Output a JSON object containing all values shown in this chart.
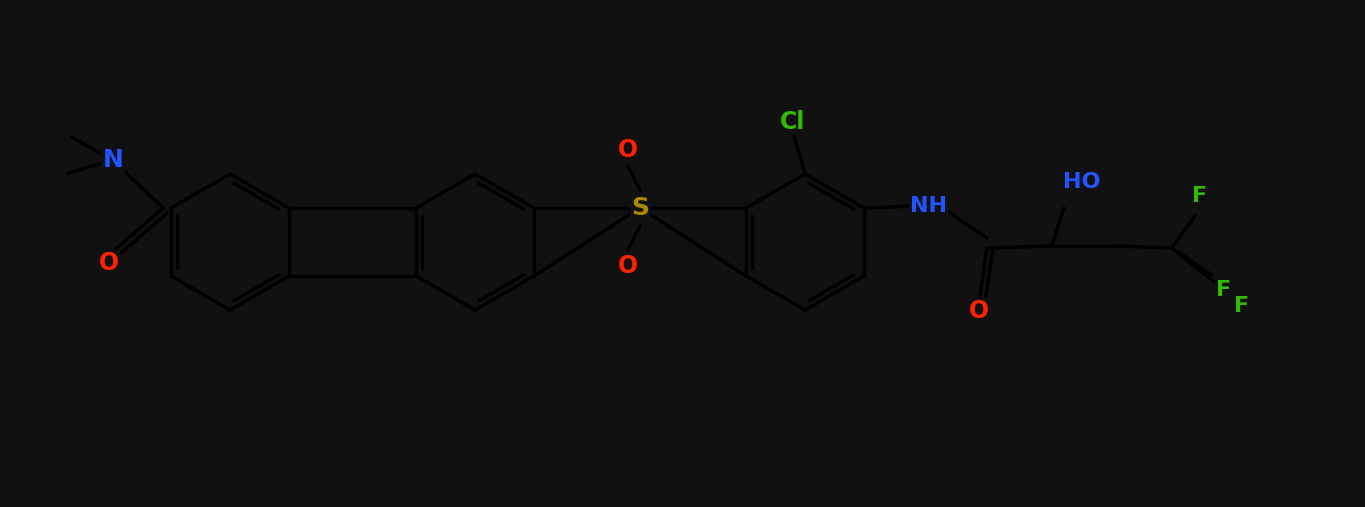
{
  "bg_color": "#111111",
  "bond_color": "black",
  "atom_colors": {
    "N": "#2255ff",
    "O": "#ff2200",
    "S": "#aa8800",
    "Cl": "#33bb00",
    "F": "#33bb00",
    "NH": "#2255ff",
    "HO": "#2255ff"
  },
  "figsize": [
    13.65,
    5.07
  ],
  "dpi": 100,
  "lw": 2.5,
  "fs": 16,
  "r_hex": 0.68
}
